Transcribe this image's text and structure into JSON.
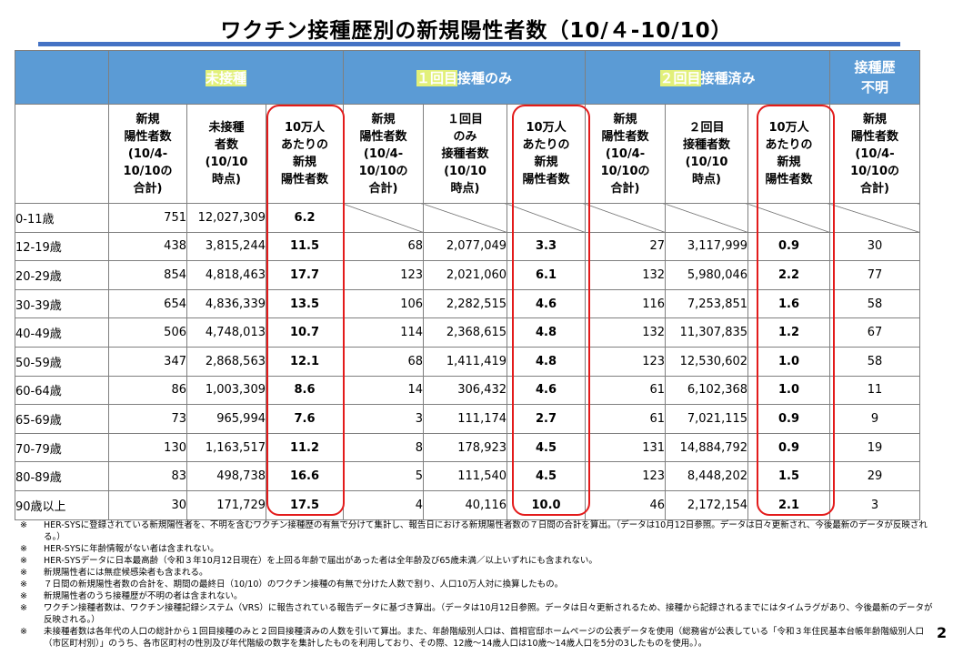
{
  "title": "ワクチン接種歴別の新規陽性者数（10/４-10/10）",
  "groups": {
    "unvaccinated_hl": "未接種",
    "unvaccinated_rest": "",
    "dose1_hl": "１回目",
    "dose1_rest": "接種のみ",
    "dose2_hl": "２回目",
    "dose2_rest": "接種済み",
    "unknown_line1": "接種歴",
    "unknown_line2": "不明"
  },
  "subheaders": {
    "unvac_new": [
      "新規",
      "陽性者数",
      "(10/4-",
      "10/10の",
      "合計)"
    ],
    "unvac_pop": [
      "未接種",
      "者数",
      "(10/10",
      "時点)"
    ],
    "unvac_rate": [
      "10万人",
      "あたりの",
      "新規",
      "陽性者数"
    ],
    "d1_new": [
      "新規",
      "陽性者数",
      "(10/4-",
      "10/10の",
      "合計)"
    ],
    "d1_pop": [
      "１回目",
      "のみ",
      "接種者数",
      "(10/10",
      "時点)"
    ],
    "d1_rate": [
      "10万人",
      "あたりの",
      "新規",
      "陽性者数"
    ],
    "d2_new": [
      "新規",
      "陽性者数",
      "(10/4-",
      "10/10の",
      "合計)"
    ],
    "d2_pop": [
      "２回目",
      "接種者数",
      "(10/10",
      "時点)"
    ],
    "d2_rate": [
      "10万人",
      "あたりの",
      "新規",
      "陽性者数"
    ],
    "unk_new": [
      "新規",
      "陽性者数",
      "(10/4-",
      "10/10の",
      "合計)"
    ]
  },
  "rows": [
    {
      "age": "0-11歳",
      "u_new": "751",
      "u_pop": "12,027,309",
      "u_rate": "6.2",
      "d1_new": "",
      "d1_pop": "",
      "d1_rate": "",
      "d2_new": "",
      "d2_pop": "",
      "d2_rate": "",
      "unk": ""
    },
    {
      "age": "12-19歳",
      "u_new": "438",
      "u_pop": "3,815,244",
      "u_rate": "11.5",
      "d1_new": "68",
      "d1_pop": "2,077,049",
      "d1_rate": "3.3",
      "d2_new": "27",
      "d2_pop": "3,117,999",
      "d2_rate": "0.9",
      "unk": "30"
    },
    {
      "age": "20-29歳",
      "u_new": "854",
      "u_pop": "4,818,463",
      "u_rate": "17.7",
      "d1_new": "123",
      "d1_pop": "2,021,060",
      "d1_rate": "6.1",
      "d2_new": "132",
      "d2_pop": "5,980,046",
      "d2_rate": "2.2",
      "unk": "77"
    },
    {
      "age": "30-39歳",
      "u_new": "654",
      "u_pop": "4,836,339",
      "u_rate": "13.5",
      "d1_new": "106",
      "d1_pop": "2,282,515",
      "d1_rate": "4.6",
      "d2_new": "116",
      "d2_pop": "7,253,851",
      "d2_rate": "1.6",
      "unk": "58"
    },
    {
      "age": "40-49歳",
      "u_new": "506",
      "u_pop": "4,748,013",
      "u_rate": "10.7",
      "d1_new": "114",
      "d1_pop": "2,368,615",
      "d1_rate": "4.8",
      "d2_new": "132",
      "d2_pop": "11,307,835",
      "d2_rate": "1.2",
      "unk": "67"
    },
    {
      "age": "50-59歳",
      "u_new": "347",
      "u_pop": "2,868,563",
      "u_rate": "12.1",
      "d1_new": "68",
      "d1_pop": "1,411,419",
      "d1_rate": "4.8",
      "d2_new": "123",
      "d2_pop": "12,530,602",
      "d2_rate": "1.0",
      "unk": "58"
    },
    {
      "age": "60-64歳",
      "u_new": "86",
      "u_pop": "1,003,309",
      "u_rate": "8.6",
      "d1_new": "14",
      "d1_pop": "306,432",
      "d1_rate": "4.6",
      "d2_new": "61",
      "d2_pop": "6,102,368",
      "d2_rate": "1.0",
      "unk": "11"
    },
    {
      "age": "65-69歳",
      "u_new": "73",
      "u_pop": "965,994",
      "u_rate": "7.6",
      "d1_new": "3",
      "d1_pop": "111,174",
      "d1_rate": "2.7",
      "d2_new": "61",
      "d2_pop": "7,021,115",
      "d2_rate": "0.9",
      "unk": "9"
    },
    {
      "age": "70-79歳",
      "u_new": "130",
      "u_pop": "1,163,517",
      "u_rate": "11.2",
      "d1_new": "8",
      "d1_pop": "178,923",
      "d1_rate": "4.5",
      "d2_new": "131",
      "d2_pop": "14,884,792",
      "d2_rate": "0.9",
      "unk": "19"
    },
    {
      "age": "80-89歳",
      "u_new": "83",
      "u_pop": "498,738",
      "u_rate": "16.6",
      "d1_new": "5",
      "d1_pop": "111,540",
      "d1_rate": "4.5",
      "d2_new": "123",
      "d2_pop": "8,448,202",
      "d2_rate": "1.5",
      "unk": "29"
    },
    {
      "age": "90歳以上",
      "u_new": "30",
      "u_pop": "171,729",
      "u_rate": "17.5",
      "d1_new": "4",
      "d1_pop": "40,116",
      "d1_rate": "10.0",
      "d2_new": "46",
      "d2_pop": "2,172,154",
      "d2_rate": "2.1",
      "unk": "3"
    }
  ],
  "notes_mark": "※",
  "notes": [
    "HER-SYSに登録されている新規陽性者を、不明を含むワクチン接種歴の有無で分けて集計し、報告日における新規陽性者数の７日間の合計を算出。（データは10月12日参照。データは日々更新され、今後最新のデータが反映される。）",
    "HER-SYSに年齢情報がない者は含まれない。",
    "HER-SYSデータに日本最高齢（令和３年10月12日現在）を上回る年齢で届出があった者は全年齢及び65歳未満／以上いずれにも含まれない。",
    "新規陽性者には無症候感染者も含まれる。",
    "７日間の新規陽性者数の合計を、期間の最終日（10/10）のワクチン接種の有無で分けた人数で割り、人口10万人対に換算したもの。",
    "新規陽性者のうち接種歴が不明の者は含まれない。",
    "ワクチン接種者数は、ワクチン接種記録システム（VRS）に報告されている報告データに基づき算出。（データは10月12日参照。データは日々更新されるため、接種から記録されるまでにはタイムラグがあり、今後最新のデータが反映される。）",
    "未接種者数は各年代の人口の総計から１回目接種のみと２回目接種済みの人数を引いて算出。また、年齢階級別人口は、首相官邸ホームページの公表データを使用（総務省が公表している「令和３年住民基本台帳年齢階級別人口（市区町村別）」のうち、各市区町村の性別及び年代階級の数字を集計したものを利用しており、その際、12歳～14歳人口は10歳～14歳人口を5分の3したものを使用。）。"
  ],
  "page_number": "2",
  "colors": {
    "header_blue": "#5b9bd5",
    "highlight": "#e2f07a",
    "rule_blue": "#4472c4",
    "red_box": "#e31b1b"
  }
}
